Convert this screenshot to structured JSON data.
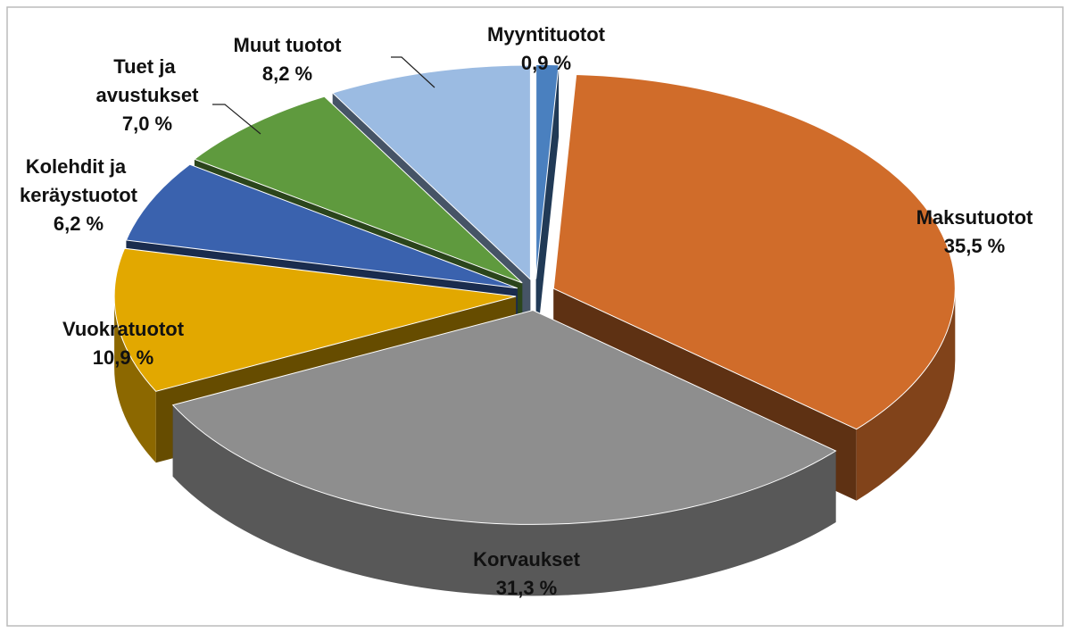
{
  "chart_data": {
    "type": "pie3d",
    "categories": [
      "Myyntituotot",
      "Maksutuotot",
      "Korvaukset",
      "Vuokratuotot",
      "Kolehdit ja keräystuotot",
      "Tuet ja avustukset",
      "Muut tuotot"
    ],
    "values": [
      0.9,
      35.5,
      31.3,
      10.9,
      6.2,
      7.0,
      8.2
    ],
    "value_labels": [
      "0,9 %",
      "35,5 %",
      "31,3 %",
      "10,9 %",
      "6,2 %",
      "7,0 %",
      "8,2 %"
    ],
    "colors": [
      "#4a80bf",
      "#d06c2a",
      "#8e8e8e",
      "#e2a800",
      "#3a62ae",
      "#5f9a3e",
      "#9bbbe2"
    ]
  }
}
